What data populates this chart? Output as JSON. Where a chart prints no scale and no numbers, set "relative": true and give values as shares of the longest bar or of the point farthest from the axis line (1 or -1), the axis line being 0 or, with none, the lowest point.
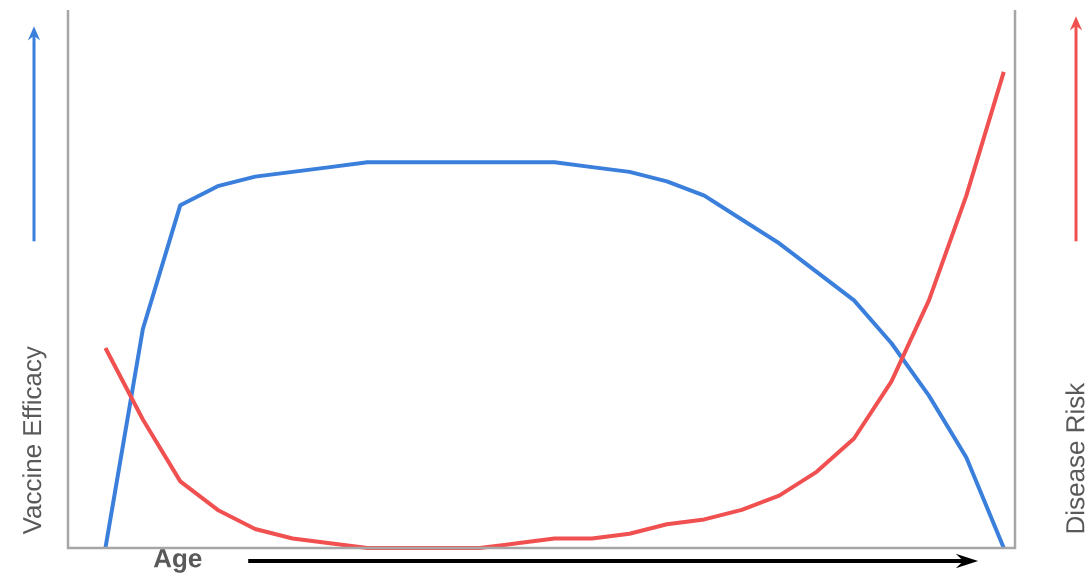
{
  "chart_data": {
    "type": "line",
    "relative": true,
    "xlabel": "Age",
    "ylabel": "Vaccine Efficacy",
    "y2label": "Disease Risk",
    "marker": "none",
    "line_style": "solid",
    "categories": [
      null,
      null,
      null,
      null,
      null,
      null,
      null,
      null,
      null,
      null,
      null,
      null,
      null,
      null,
      null,
      null,
      null,
      null,
      null,
      null,
      null,
      null,
      null,
      null,
      null
    ],
    "series": [
      {
        "color": "#3a7fdc",
        "values": [
          0,
          0.46,
          0.72,
          0.76,
          0.78,
          0.79,
          0.8,
          0.81,
          0.81,
          0.81,
          0.81,
          0.81,
          0.81,
          0.8,
          0.79,
          0.77,
          0.74,
          0.69,
          0.64,
          0.58,
          0.52,
          0.43,
          0.32,
          0.19,
          0
        ]
      },
      {
        "color": "#f05050",
        "values": [
          0.42,
          0.27,
          0.14,
          0.08,
          0.04,
          0.02,
          0.01,
          0,
          0,
          0,
          0,
          0.01,
          0.02,
          0.02,
          0.03,
          0.05,
          0.06,
          0.08,
          0.11,
          0.16,
          0.23,
          0.35,
          0.52,
          0.74,
          1
        ]
      }
    ]
  }
}
